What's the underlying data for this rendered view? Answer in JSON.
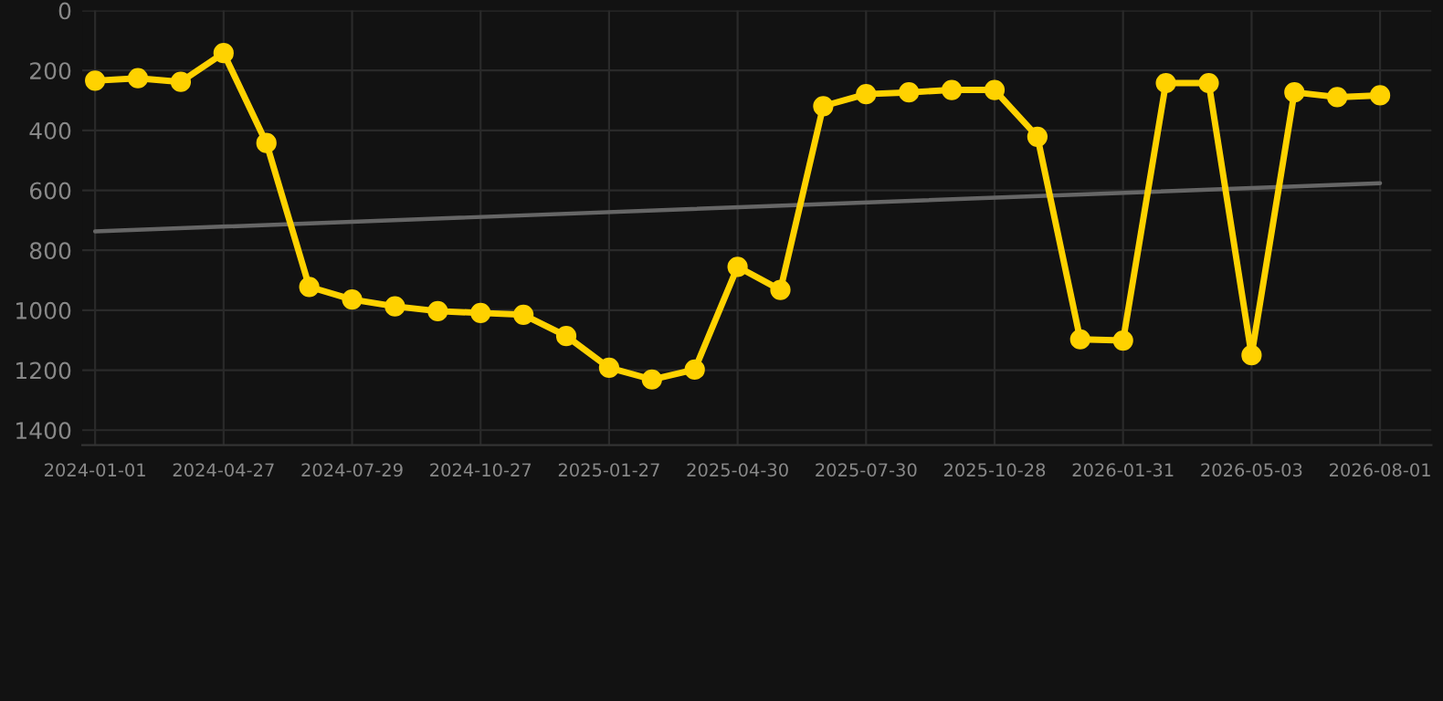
{
  "chart_data": {
    "type": "line",
    "categories": [
      "2024-01-01",
      null,
      null,
      "2024-04-27",
      null,
      null,
      "2024-07-29",
      null,
      null,
      "2024-10-27",
      null,
      null,
      "2025-01-27",
      null,
      null,
      "2025-04-30",
      null,
      null,
      "2025-07-30",
      null,
      null,
      "2025-10-28",
      null,
      null,
      "2026-01-31",
      null,
      null,
      "2026-05-03",
      null,
      null,
      "2026-08-01"
    ],
    "series": [
      {
        "color": "#ffd200",
        "marker": "circle",
        "values": [
          234,
          226,
          238,
          142,
          442,
          922,
          964,
          987,
          1003,
          1009,
          1015,
          1086,
          1192,
          1231,
          1198,
          855,
          932,
          319,
          279,
          273,
          265,
          265,
          421,
          1097,
          1101,
          242,
          242,
          1150,
          273,
          289,
          283
        ]
      },
      {
        "type": "line",
        "color": "#666666",
        "marker": "none",
        "values": [
          737,
          null,
          null,
          null,
          null,
          null,
          null,
          null,
          null,
          null,
          null,
          null,
          null,
          null,
          null,
          null,
          null,
          null,
          null,
          null,
          null,
          null,
          null,
          null,
          null,
          null,
          null,
          null,
          null,
          null,
          576
        ]
      }
    ],
    "ylim": [
      1450,
      0
    ],
    "yticks": [
      0,
      200,
      400,
      600,
      800,
      1000,
      1200,
      1400
    ],
    "grid": true,
    "line_style": "solid"
  }
}
